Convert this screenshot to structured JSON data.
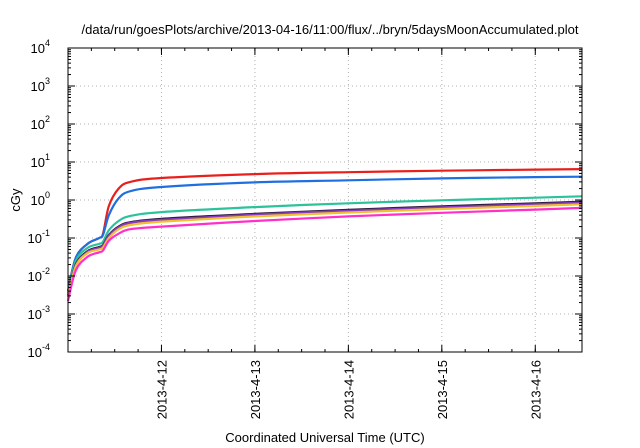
{
  "chart_data": {
    "type": "line",
    "title": "/data/run/goesPlots/archive/2013-04-16/11:00/flux/../bryn/5daysMoonAccumulated.plot",
    "xlabel": "Coordinated Universal Time (UTC)",
    "ylabel": "cGy",
    "y_scale": "log",
    "ylim_exp": [
      -4,
      4
    ],
    "y_tick_base": "10",
    "y_tick_exponents": [
      "-4",
      "-3",
      "-2",
      "-1",
      "0",
      "1",
      "2",
      "3",
      "4"
    ],
    "xlim": [
      "2013-04-11 00:00",
      "2013-04-16 12:00"
    ],
    "x_ticks": [
      "2013-4-12",
      "2013-4-13",
      "2013-4-14",
      "2013-4-15",
      "2013-4-16"
    ],
    "grid": true,
    "series": [
      {
        "color": "#e8201c",
        "x": [
          "2013-04-11 00:00",
          "2013-04-11 02:00",
          "2013-04-11 05:00",
          "2013-04-11 08:00",
          "2013-04-11 09:00",
          "2013-04-11 10:30",
          "2013-04-11 13:00",
          "2013-04-11 16:00",
          "2013-04-12 00:00",
          "2013-04-13 00:00",
          "2013-04-14 00:00",
          "2013-04-15 00:00",
          "2013-04-16 00:00",
          "2013-04-16 12:00"
        ],
        "values": [
          0.004,
          0.03,
          0.07,
          0.1,
          0.13,
          0.7,
          2.0,
          3.0,
          3.8,
          4.8,
          5.4,
          5.9,
          6.3,
          6.5
        ]
      },
      {
        "color": "#1f6fe0",
        "x": [
          "2013-04-11 00:00",
          "2013-04-11 02:00",
          "2013-04-11 05:00",
          "2013-04-11 08:00",
          "2013-04-11 09:00",
          "2013-04-11 10:30",
          "2013-04-11 13:00",
          "2013-04-11 16:00",
          "2013-04-12 00:00",
          "2013-04-13 00:00",
          "2013-04-14 00:00",
          "2013-04-15 00:00",
          "2013-04-16 00:00",
          "2013-04-16 12:00"
        ],
        "values": [
          0.004,
          0.03,
          0.07,
          0.1,
          0.12,
          0.4,
          1.1,
          1.7,
          2.2,
          2.9,
          3.3,
          3.7,
          4.0,
          4.1
        ]
      },
      {
        "color": "#2cc29a",
        "x": [
          "2013-04-11 00:00",
          "2013-04-11 02:00",
          "2013-04-11 05:00",
          "2013-04-11 08:00",
          "2013-04-11 09:00",
          "2013-04-11 10:30",
          "2013-04-11 13:00",
          "2013-04-11 16:00",
          "2013-04-12 00:00",
          "2013-04-13 00:00",
          "2013-04-14 00:00",
          "2013-04-15 00:00",
          "2013-04-16 00:00",
          "2013-04-16 12:00"
        ],
        "values": [
          0.0035,
          0.025,
          0.055,
          0.07,
          0.08,
          0.16,
          0.28,
          0.38,
          0.48,
          0.65,
          0.82,
          0.98,
          1.15,
          1.25
        ]
      },
      {
        "color": "#2a1b3d",
        "x": [
          "2013-04-11 00:00",
          "2013-04-11 02:00",
          "2013-04-11 05:00",
          "2013-04-11 08:00",
          "2013-04-11 09:00",
          "2013-04-11 10:30",
          "2013-04-11 13:00",
          "2013-04-11 16:00",
          "2013-04-12 00:00",
          "2013-04-13 00:00",
          "2013-04-14 00:00",
          "2013-04-15 00:00",
          "2013-04-16 00:00",
          "2013-04-16 12:00"
        ],
        "values": [
          0.003,
          0.02,
          0.045,
          0.058,
          0.065,
          0.12,
          0.2,
          0.26,
          0.32,
          0.43,
          0.55,
          0.68,
          0.82,
          0.9
        ]
      },
      {
        "color": "#8a3cc0",
        "x": [
          "2013-04-11 00:00",
          "2013-04-11 02:00",
          "2013-04-11 05:00",
          "2013-04-11 08:00",
          "2013-04-11 09:00",
          "2013-04-11 10:30",
          "2013-04-11 13:00",
          "2013-04-11 16:00",
          "2013-04-12 00:00",
          "2013-04-13 00:00",
          "2013-04-14 00:00",
          "2013-04-15 00:00",
          "2013-04-16 00:00",
          "2013-04-16 12:00"
        ],
        "values": [
          0.003,
          0.019,
          0.043,
          0.055,
          0.062,
          0.115,
          0.19,
          0.25,
          0.3,
          0.41,
          0.52,
          0.64,
          0.77,
          0.85
        ]
      },
      {
        "color": "#f0c030",
        "x": [
          "2013-04-11 00:00",
          "2013-04-11 02:00",
          "2013-04-11 05:00",
          "2013-04-11 08:00",
          "2013-04-11 09:00",
          "2013-04-11 10:30",
          "2013-04-11 13:00",
          "2013-04-11 16:00",
          "2013-04-12 00:00",
          "2013-04-13 00:00",
          "2013-04-14 00:00",
          "2013-04-15 00:00",
          "2013-04-16 00:00",
          "2013-04-16 12:00"
        ],
        "values": [
          0.0028,
          0.018,
          0.04,
          0.05,
          0.056,
          0.1,
          0.17,
          0.22,
          0.27,
          0.37,
          0.47,
          0.58,
          0.7,
          0.77
        ]
      },
      {
        "color": "#ff2fc8",
        "x": [
          "2013-04-11 00:00",
          "2013-04-11 02:00",
          "2013-04-11 05:00",
          "2013-04-11 08:00",
          "2013-04-11 09:00",
          "2013-04-11 10:30",
          "2013-04-11 13:00",
          "2013-04-11 16:00",
          "2013-04-12 00:00",
          "2013-04-13 00:00",
          "2013-04-14 00:00",
          "2013-04-15 00:00",
          "2013-04-16 00:00",
          "2013-04-16 12:00"
        ],
        "values": [
          0.0022,
          0.014,
          0.032,
          0.042,
          0.047,
          0.085,
          0.13,
          0.17,
          0.2,
          0.28,
          0.37,
          0.46,
          0.56,
          0.62
        ]
      }
    ]
  }
}
